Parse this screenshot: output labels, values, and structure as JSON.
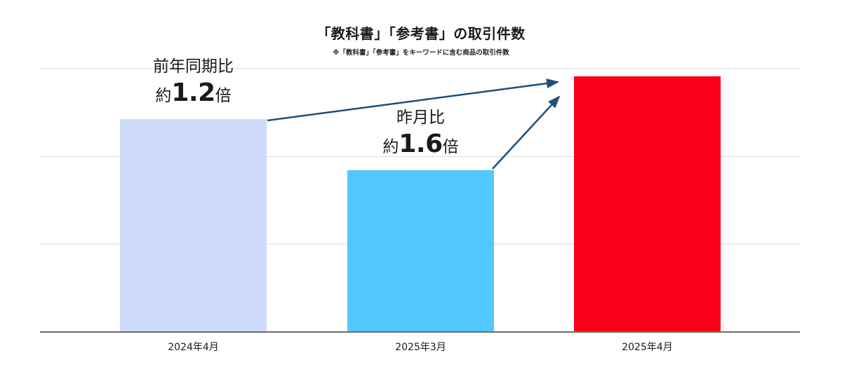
{
  "chart_data": {
    "type": "bar",
    "title": "「教科書」「参考書」の取引件数",
    "subtitle": "※「教科書」「参考書」をキーワードに含む商品の取引件数",
    "xlabel": "",
    "ylabel": "",
    "categories": [
      "2024年4月",
      "2025年3月",
      "2025年4月"
    ],
    "values": [
      100,
      76,
      120
    ],
    "value_note": "relative index (2024年4月 = 100); y-axis has no tick labels",
    "colors": [
      "#cfdbfa",
      "#52c8ff",
      "#fb0019"
    ],
    "ylim": [
      0,
      150
    ],
    "grid": true,
    "gridlines_count": 3,
    "legend": null,
    "annotations": [
      {
        "label": "前年同期比",
        "prefix": "約",
        "value": "1.2",
        "suffix": "倍",
        "from": "2024年4月",
        "to": "2025年4月"
      },
      {
        "label": "昨月比",
        "prefix": "約",
        "value": "1.6",
        "suffix": "倍",
        "from": "2025年3月",
        "to": "2025年4月"
      }
    ],
    "arrow_color": "#1f4e7a"
  }
}
